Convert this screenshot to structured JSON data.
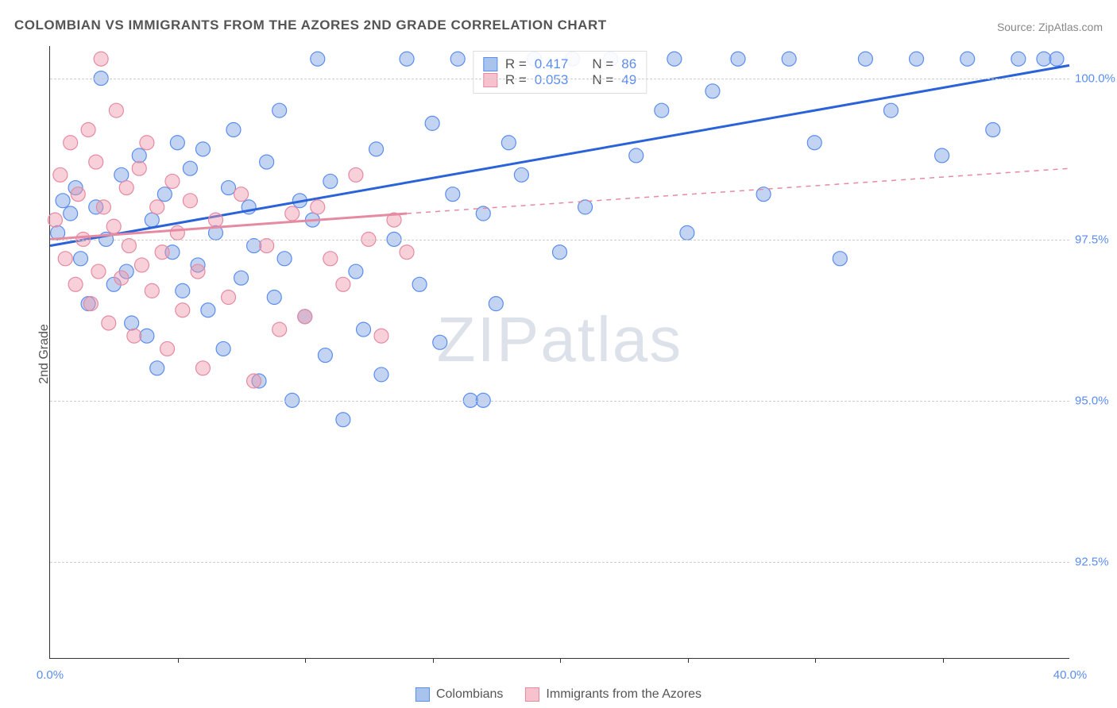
{
  "title": "COLOMBIAN VS IMMIGRANTS FROM THE AZORES 2ND GRADE CORRELATION CHART",
  "source": "Source: ZipAtlas.com",
  "ylabel": "2nd Grade",
  "watermark": "ZIPatlas",
  "chart": {
    "type": "scatter",
    "xlim": [
      0,
      40
    ],
    "ylim": [
      91,
      100.5
    ],
    "xticks": [
      0,
      40
    ],
    "xtick_minor": [
      5,
      10,
      15,
      20,
      25,
      30,
      35
    ],
    "yticks": [
      92.5,
      95.0,
      97.5,
      100.0
    ],
    "ytick_labels": [
      "92.5%",
      "95.0%",
      "97.5%",
      "100.0%"
    ],
    "xtick_labels": [
      "0.0%",
      "40.0%"
    ],
    "background_color": "#ffffff",
    "grid_color": "#cccccc",
    "marker_radius": 9,
    "marker_stroke_width": 1.2,
    "trend_line_width": 3
  },
  "series": [
    {
      "name": "Colombians",
      "color_fill": "rgba(120,160,225,0.45)",
      "color_stroke": "#5b8def",
      "swatch_fill": "#a8c4ed",
      "swatch_border": "#5b8def",
      "R": "0.417",
      "N": "86",
      "trend": {
        "x1": 0,
        "y1": 97.4,
        "x2": 40,
        "y2": 100.2,
        "dashed": false,
        "color": "#2962d9"
      },
      "points": [
        [
          0.3,
          97.6
        ],
        [
          0.5,
          98.1
        ],
        [
          0.8,
          97.9
        ],
        [
          1.0,
          98.3
        ],
        [
          1.2,
          97.2
        ],
        [
          1.5,
          96.5
        ],
        [
          1.8,
          98.0
        ],
        [
          2.0,
          100.0
        ],
        [
          2.2,
          97.5
        ],
        [
          2.5,
          96.8
        ],
        [
          2.8,
          98.5
        ],
        [
          3.0,
          97.0
        ],
        [
          3.2,
          96.2
        ],
        [
          3.5,
          98.8
        ],
        [
          3.8,
          96.0
        ],
        [
          4.0,
          97.8
        ],
        [
          4.2,
          95.5
        ],
        [
          4.5,
          98.2
        ],
        [
          4.8,
          97.3
        ],
        [
          5.0,
          99.0
        ],
        [
          5.2,
          96.7
        ],
        [
          5.5,
          98.6
        ],
        [
          5.8,
          97.1
        ],
        [
          6.0,
          98.9
        ],
        [
          6.2,
          96.4
        ],
        [
          6.5,
          97.6
        ],
        [
          6.8,
          95.8
        ],
        [
          7.0,
          98.3
        ],
        [
          7.2,
          99.2
        ],
        [
          7.5,
          96.9
        ],
        [
          7.8,
          98.0
        ],
        [
          8.0,
          97.4
        ],
        [
          8.2,
          95.3
        ],
        [
          8.5,
          98.7
        ],
        [
          8.8,
          96.6
        ],
        [
          9.0,
          99.5
        ],
        [
          9.2,
          97.2
        ],
        [
          9.5,
          95.0
        ],
        [
          9.8,
          98.1
        ],
        [
          10.0,
          96.3
        ],
        [
          10.3,
          97.8
        ],
        [
          10.5,
          100.3
        ],
        [
          10.8,
          95.7
        ],
        [
          11.0,
          98.4
        ],
        [
          11.5,
          94.7
        ],
        [
          12.0,
          97.0
        ],
        [
          12.3,
          96.1
        ],
        [
          12.8,
          98.9
        ],
        [
          13.0,
          95.4
        ],
        [
          13.5,
          97.5
        ],
        [
          14.0,
          100.3
        ],
        [
          14.5,
          96.8
        ],
        [
          15.0,
          99.3
        ],
        [
          15.3,
          95.9
        ],
        [
          15.8,
          98.2
        ],
        [
          16.0,
          100.3
        ],
        [
          16.5,
          95.0
        ],
        [
          17.0,
          97.9
        ],
        [
          17.5,
          96.5
        ],
        [
          18.0,
          99.0
        ],
        [
          17.0,
          95.0
        ],
        [
          18.5,
          98.5
        ],
        [
          19.0,
          100.3
        ],
        [
          20.0,
          97.3
        ],
        [
          21.0,
          98.0
        ],
        [
          22.0,
          100.3
        ],
        [
          23.0,
          98.8
        ],
        [
          24.0,
          99.5
        ],
        [
          25.0,
          97.6
        ],
        [
          26.0,
          99.8
        ],
        [
          27.0,
          100.3
        ],
        [
          28.0,
          98.2
        ],
        [
          29.0,
          100.3
        ],
        [
          30.0,
          99.0
        ],
        [
          31.0,
          97.2
        ],
        [
          32.0,
          100.3
        ],
        [
          33.0,
          99.5
        ],
        [
          34.0,
          100.3
        ],
        [
          35.0,
          98.8
        ],
        [
          36.0,
          100.3
        ],
        [
          37.0,
          99.2
        ],
        [
          38.0,
          100.3
        ],
        [
          39.0,
          100.3
        ],
        [
          39.5,
          100.3
        ],
        [
          20.5,
          100.3
        ],
        [
          24.5,
          100.3
        ]
      ]
    },
    {
      "name": "Immigrants from the Azores",
      "color_fill": "rgba(240,150,170,0.45)",
      "color_stroke": "#e68aa2",
      "swatch_fill": "#f5c2ce",
      "swatch_border": "#e68aa2",
      "R": "0.053",
      "N": "49",
      "trend": {
        "x1": 0,
        "y1": 97.5,
        "x2": 14,
        "y2": 97.9,
        "x2_ext": 40,
        "y2_ext": 98.6,
        "dashed": true,
        "color": "#e68aa2"
      },
      "points": [
        [
          0.2,
          97.8
        ],
        [
          0.4,
          98.5
        ],
        [
          0.6,
          97.2
        ],
        [
          0.8,
          99.0
        ],
        [
          1.0,
          96.8
        ],
        [
          1.1,
          98.2
        ],
        [
          1.3,
          97.5
        ],
        [
          1.5,
          99.2
        ],
        [
          1.6,
          96.5
        ],
        [
          1.8,
          98.7
        ],
        [
          1.9,
          97.0
        ],
        [
          2.0,
          100.3
        ],
        [
          2.1,
          98.0
        ],
        [
          2.3,
          96.2
        ],
        [
          2.5,
          97.7
        ],
        [
          2.6,
          99.5
        ],
        [
          2.8,
          96.9
        ],
        [
          3.0,
          98.3
        ],
        [
          3.1,
          97.4
        ],
        [
          3.3,
          96.0
        ],
        [
          3.5,
          98.6
        ],
        [
          3.6,
          97.1
        ],
        [
          3.8,
          99.0
        ],
        [
          4.0,
          96.7
        ],
        [
          4.2,
          98.0
        ],
        [
          4.4,
          97.3
        ],
        [
          4.6,
          95.8
        ],
        [
          4.8,
          98.4
        ],
        [
          5.0,
          97.6
        ],
        [
          5.2,
          96.4
        ],
        [
          5.5,
          98.1
        ],
        [
          5.8,
          97.0
        ],
        [
          6.0,
          95.5
        ],
        [
          6.5,
          97.8
        ],
        [
          7.0,
          96.6
        ],
        [
          7.5,
          98.2
        ],
        [
          8.0,
          95.3
        ],
        [
          8.5,
          97.4
        ],
        [
          9.0,
          96.1
        ],
        [
          9.5,
          97.9
        ],
        [
          10.0,
          96.3
        ],
        [
          10.5,
          98.0
        ],
        [
          11.0,
          97.2
        ],
        [
          11.5,
          96.8
        ],
        [
          12.0,
          98.5
        ],
        [
          12.5,
          97.5
        ],
        [
          13.0,
          96.0
        ],
        [
          13.5,
          97.8
        ],
        [
          14.0,
          97.3
        ]
      ]
    }
  ],
  "legend": {
    "items": [
      {
        "label": "Colombians"
      },
      {
        "label": "Immigrants from the Azores"
      }
    ]
  },
  "stat_labels": {
    "R": "R =",
    "N": "N ="
  }
}
